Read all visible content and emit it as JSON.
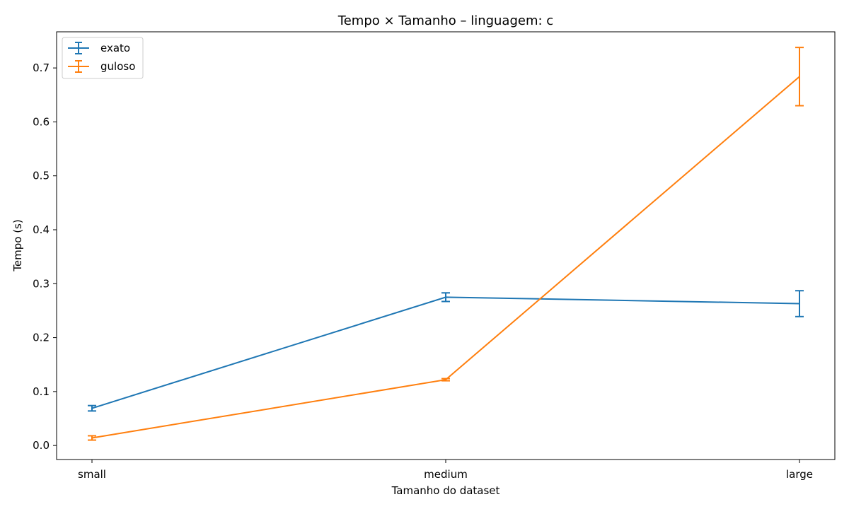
{
  "chart_data": {
    "type": "line",
    "title": "Tempo × Tamanho – linguagem: c",
    "xlabel": "Tamanho do dataset",
    "ylabel": "Tempo (s)",
    "categories": [
      "small",
      "medium",
      "large"
    ],
    "ylim": [
      -0.026,
      0.767
    ],
    "yticks": [
      0.0,
      0.1,
      0.2,
      0.3,
      0.4,
      0.5,
      0.6,
      0.7
    ],
    "ytick_labels": [
      "0.0",
      "0.1",
      "0.2",
      "0.3",
      "0.4",
      "0.5",
      "0.6",
      "0.7"
    ],
    "grid": false,
    "legend_position": "top-left",
    "series": [
      {
        "name": "exato",
        "color": "#1f77b4",
        "values": [
          0.069,
          0.275,
          0.263
        ],
        "error": [
          0.005,
          0.008,
          0.024
        ]
      },
      {
        "name": "guloso",
        "color": "#ff7f0e",
        "values": [
          0.014,
          0.122,
          0.684
        ],
        "error": [
          0.004,
          0.002,
          0.054
        ]
      }
    ]
  }
}
